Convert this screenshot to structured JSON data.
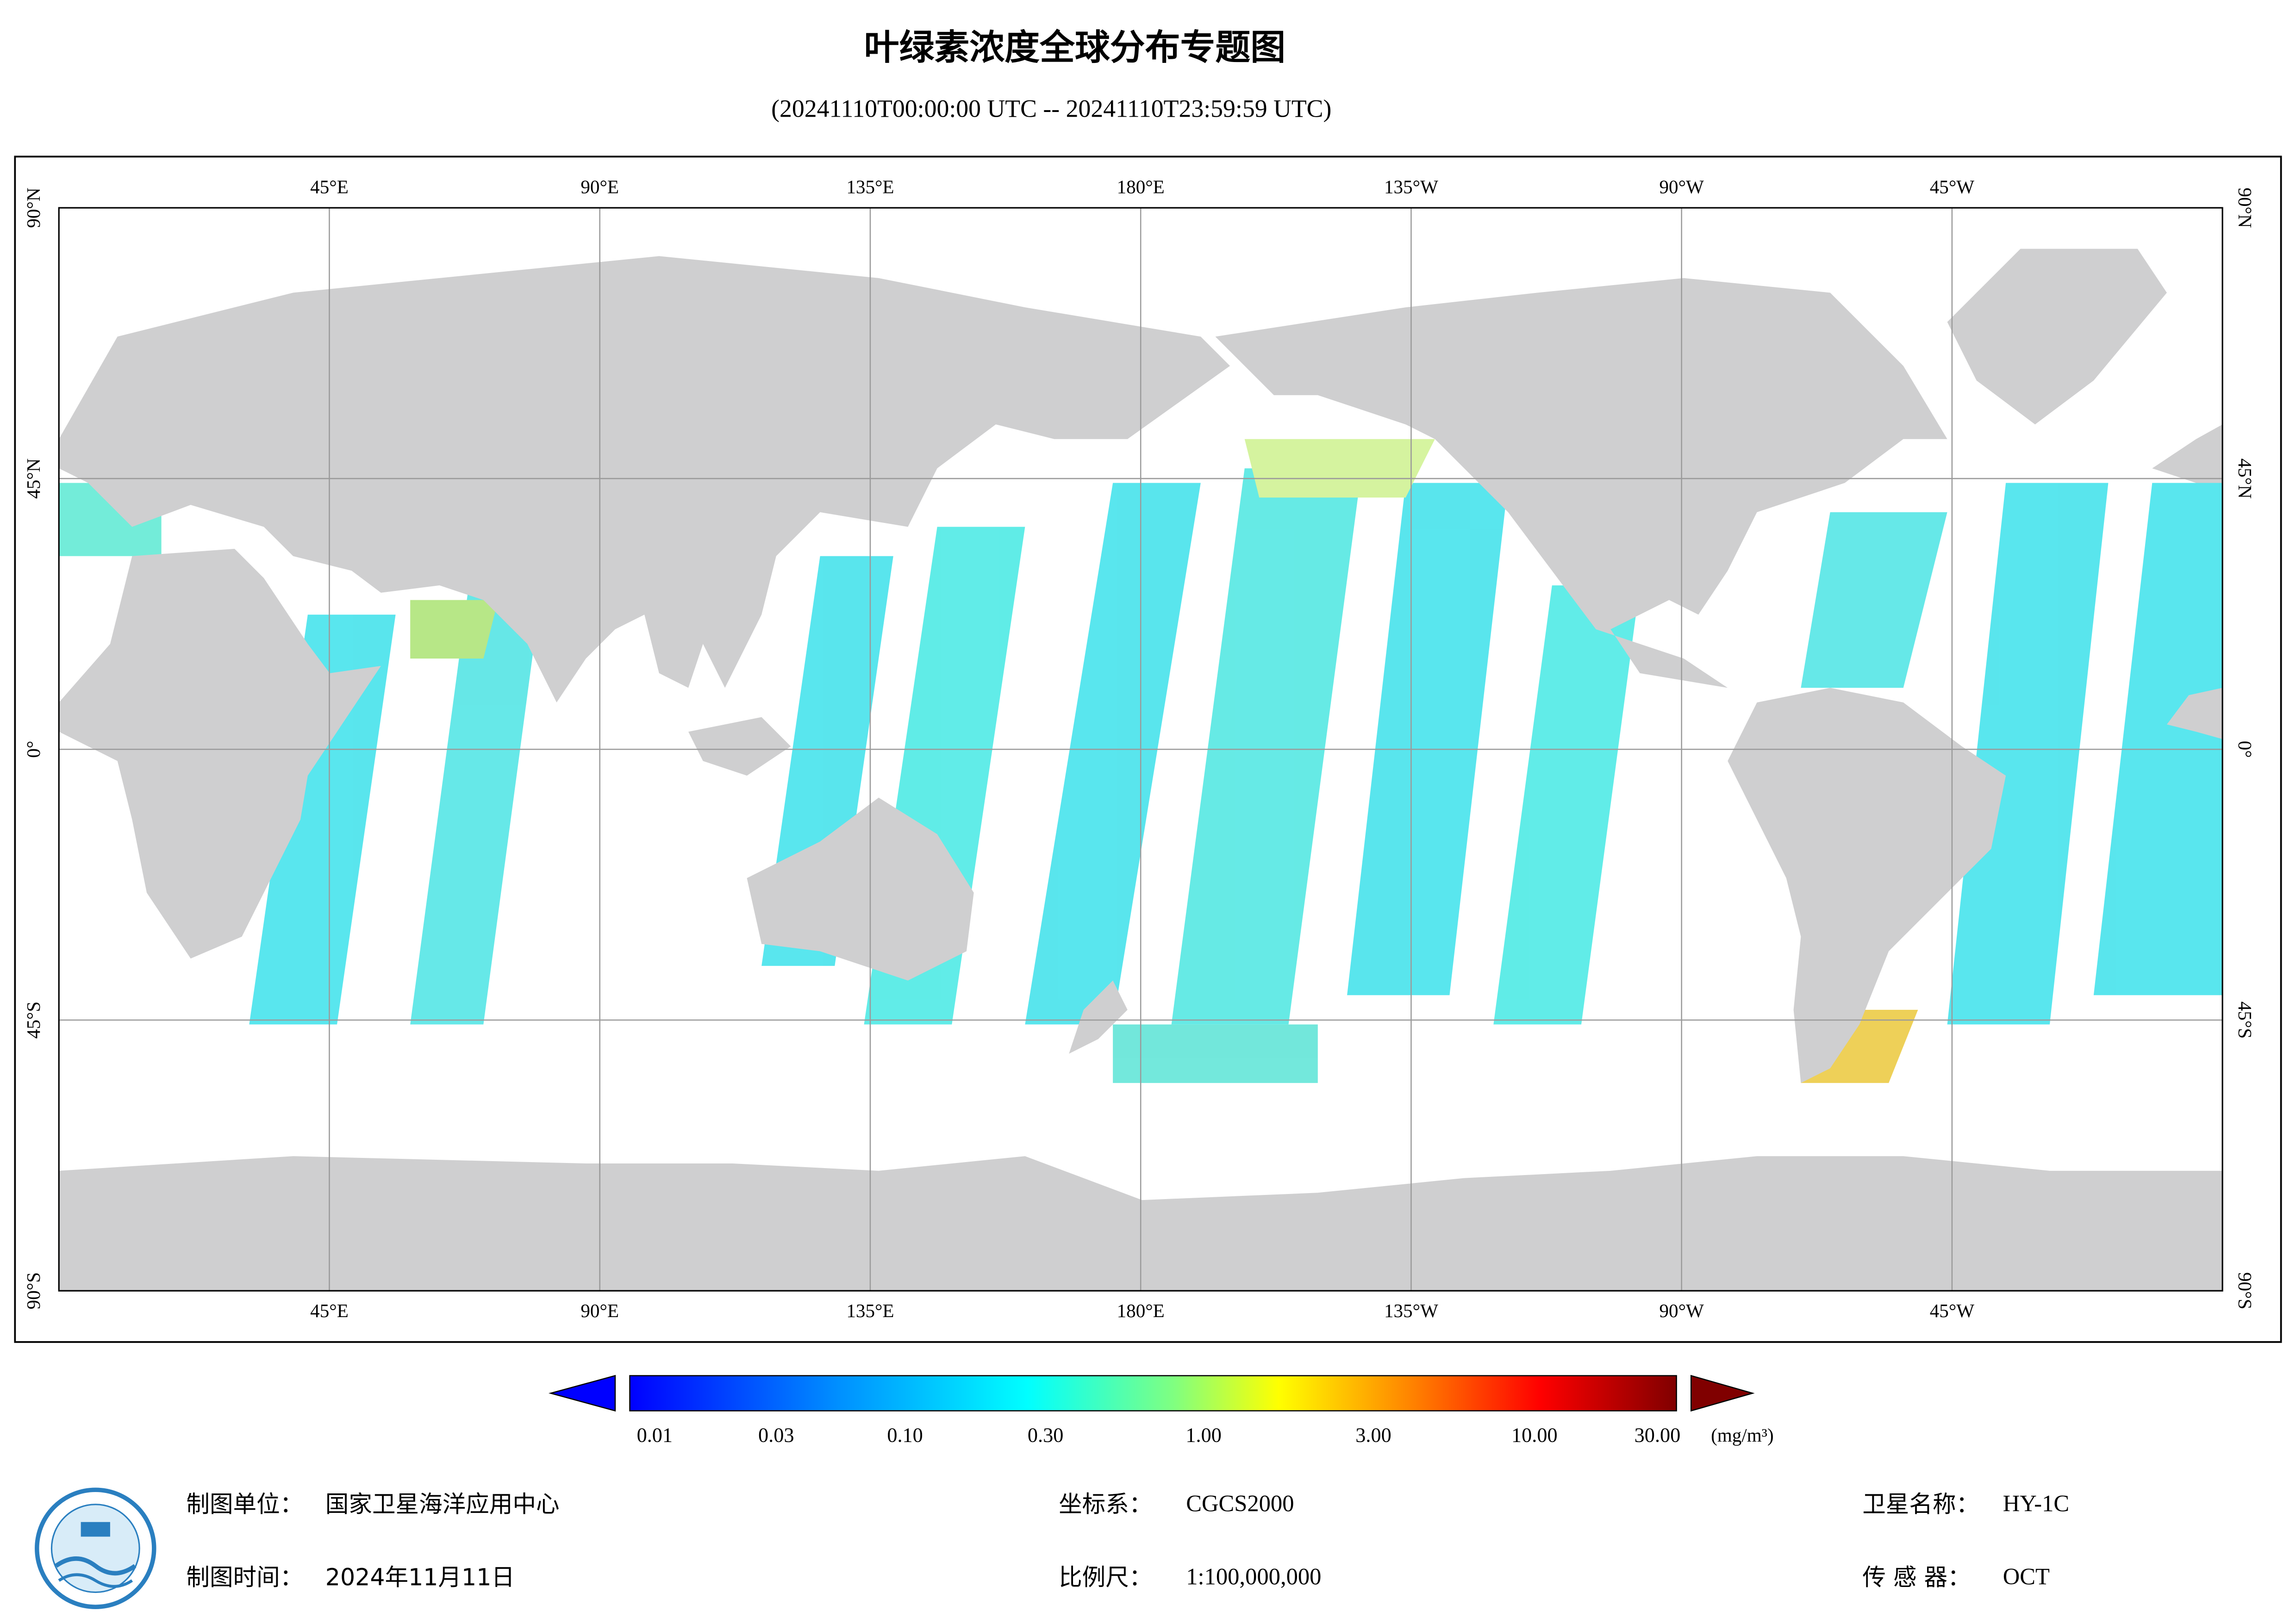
{
  "title": "叶绿素浓度全球分布专题图",
  "subtitle": "(20241110T00:00:00 UTC -- 20241110T23:59:59 UTC)",
  "map": {
    "lon_labels": [
      "45°E",
      "90°E",
      "135°E",
      "180°E",
      "135°W",
      "90°W",
      "45°W"
    ],
    "lat_labels": [
      "90°N",
      "45°N",
      "0°",
      "45°S",
      "90°S"
    ]
  },
  "colorbar": {
    "tick_labels": [
      "0.01",
      "0.03",
      "0.10",
      "0.30",
      "1.00",
      "3.00",
      "10.00",
      "30.00"
    ],
    "unit": "(mg/m³)"
  },
  "footer": {
    "unit_label": "制图单位：",
    "unit": "国家卫星海洋应用中心",
    "date_label": "制图时间：",
    "date": "2024年11月11日",
    "crs_label": "坐标系：",
    "crs": "CGCS2000",
    "scale_label": "比例尺：",
    "scale": "1:100,000,000",
    "satellite_label": "卫星名称：",
    "satellite": "HY-1C",
    "sensor_label": "传 感 器：",
    "sensor": "OCT"
  }
}
